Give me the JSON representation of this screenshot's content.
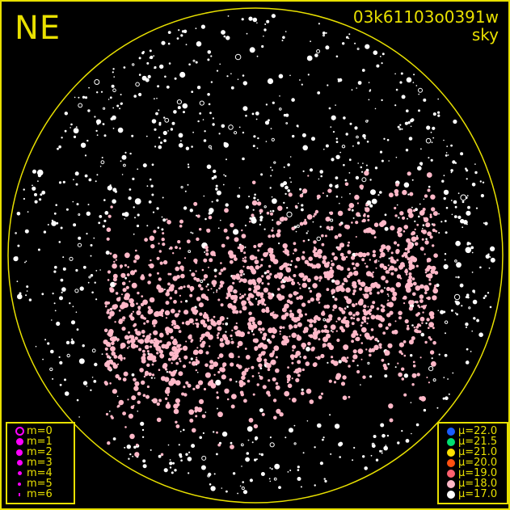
{
  "direction_label": "NE",
  "frame_id": "03k61103o0391w",
  "frame_type": "sky",
  "colors": {
    "frame": "#e8e000",
    "background": "#000000",
    "magnitude_symbol": "#ff00ff"
  },
  "magnitude_legend": [
    {
      "label": "m=0",
      "style": "ring"
    },
    {
      "label": "m=1",
      "style": "dot"
    },
    {
      "label": "m=2",
      "style": "dot"
    },
    {
      "label": "m=3",
      "style": "dot"
    },
    {
      "label": "m=4",
      "style": "dot"
    },
    {
      "label": "m=5",
      "style": "dot"
    },
    {
      "label": "m=6",
      "style": "dot"
    }
  ],
  "brightness_legend": [
    {
      "label": "μ=22.0",
      "color": "#1a5cff"
    },
    {
      "label": "μ=21.5",
      "color": "#00e070"
    },
    {
      "label": "μ=21.0",
      "color": "#ffe000"
    },
    {
      "label": "μ=20.0",
      "color": "#ff5010"
    },
    {
      "label": "μ=19.0",
      "color": "#ff6070"
    },
    {
      "label": "μ=18.0",
      "color": "#ffb8c8"
    },
    {
      "label": "μ=17.0",
      "color": "#ffffff"
    }
  ]
}
